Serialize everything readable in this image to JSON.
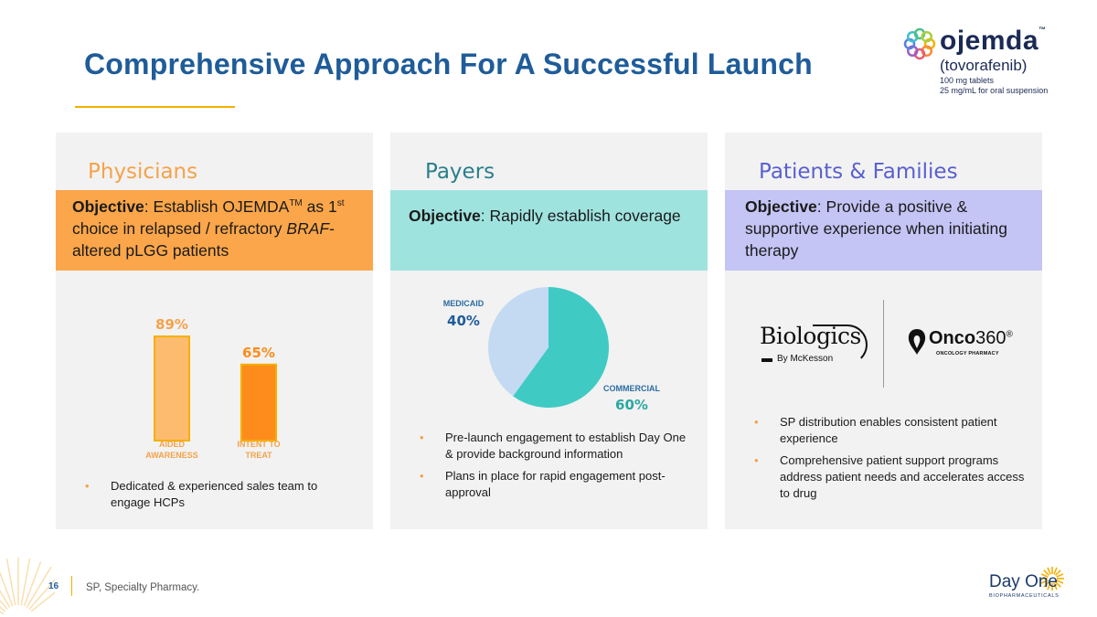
{
  "slide": {
    "title": "Comprehensive Approach For A Successful Launch",
    "page_number": "16",
    "footnote": "SP, Specialty Pharmacy."
  },
  "brand": {
    "name": "ojemda",
    "tm": "™",
    "generic": "(tovorafenib)",
    "line1": "100 mg tablets",
    "line2": "25 mg/mL for oral suspension"
  },
  "company": {
    "name": "Day One",
    "sub": "BIOPHARMACEUTICALS"
  },
  "colors": {
    "title": "#1f5c99",
    "physicians_accent": "#fba64a",
    "payers_accent": "#9fe3df",
    "patients_accent": "#c4c4f5",
    "bar_light": "#fdbb70",
    "bar_dark": "#fd8c1c",
    "pie_commercial": "#3fcbc4",
    "pie_medicaid": "#c3daf2"
  },
  "physicians": {
    "heading": "Physicians",
    "objective_label": "Objective",
    "objective_pre": ": Establish OJEMDA",
    "objective_tm": "TM",
    "objective_mid1": "  as 1",
    "objective_st": "st",
    "objective_mid2": " choice in relapsed / refractory ",
    "objective_italic": "BRAF",
    "objective_post": "-altered pLGG patients",
    "bullets": [
      "Dedicated & experienced sales team to engage HCPs"
    ]
  },
  "payers": {
    "heading": "Payers",
    "objective_label": "Objective",
    "objective_text": ": Rapidly establish coverage",
    "bullets": [
      "Pre-launch engagement to establish Day One & provide background information",
      "Plans in place for rapid engagement post-approval"
    ]
  },
  "patients": {
    "heading": "Patients & Families",
    "objective_label": "Objective",
    "objective_text": ": Provide a positive & supportive experience when initiating therapy",
    "biologics_name": "Biologics",
    "biologics_by": "By McKesson",
    "onco_name_bold": "Onco",
    "onco_name_rest": "360",
    "onco_reg": "®",
    "onco_sub": "ONCOLOGY PHARMACY",
    "bullets": [
      "SP distribution enables consistent patient experience",
      "Comprehensive patient support programs address patient needs and accelerates access to drug"
    ]
  },
  "chart_data": [
    {
      "type": "bar",
      "categories": [
        "AIDED AWARENESS",
        "INTENT TO TREAT"
      ],
      "category_lines": [
        [
          "AIDED",
          "AWARENESS"
        ],
        [
          "INTENT TO",
          "TREAT"
        ]
      ],
      "values": [
        89,
        65
      ],
      "value_labels": [
        "89%",
        "65%"
      ],
      "ylim": [
        0,
        100
      ]
    },
    {
      "type": "pie",
      "categories": [
        "COMMERCIAL",
        "MEDICAID"
      ],
      "values": [
        60,
        40
      ],
      "value_labels": [
        "60%",
        "40%"
      ]
    }
  ]
}
